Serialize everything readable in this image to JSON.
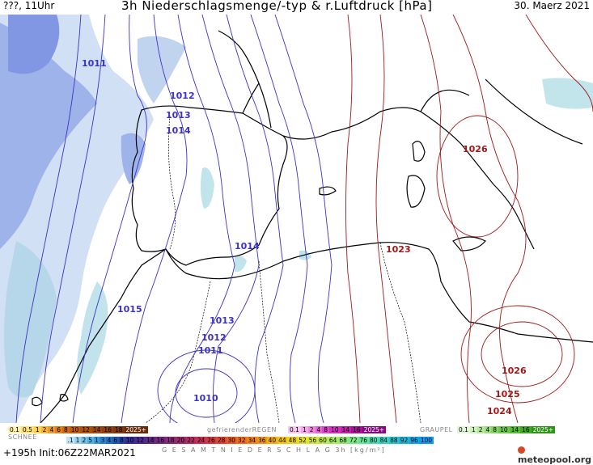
{
  "header": {
    "left": "???, 11Uhr",
    "title": "3h Niederschlagsmenge/-typ & r.Luftdruck [hPa]",
    "date": "30. Maerz 2021"
  },
  "map": {
    "isobar_labels_blue": [
      "1011",
      "1012",
      "1013",
      "1014",
      "1014",
      "1015",
      "1013",
      "1012",
      "1011",
      "1010"
    ],
    "isobar_labels_red": [
      "1026",
      "1023",
      "1026",
      "1025",
      "1024"
    ]
  },
  "legend": {
    "snow_label": "SCHNEE",
    "snow_values": [
      "0.1",
      "0.5",
      "1",
      "2",
      "4",
      "6",
      "8",
      "10",
      "12",
      "14",
      "16",
      "18",
      "2025+"
    ],
    "freezing_rain_label": "gefrierenderREGEN",
    "freezing_rain_values": [
      "0.1",
      "1",
      "2",
      "4",
      "8",
      "10",
      "14",
      "16",
      "2025+"
    ],
    "graupel_label": "GRAUPEL",
    "graupel_values": [
      "0.1",
      "1",
      "2",
      "4",
      "8",
      "10",
      "14",
      "16",
      "2025+"
    ],
    "total_values": [
      ".1",
      "1",
      "2",
      "5",
      "1",
      "3",
      "4",
      "6",
      "8",
      "10",
      "12",
      "14",
      "16",
      "18",
      "20",
      "22",
      "24",
      "26",
      "28",
      "30",
      "32",
      "34",
      "36",
      "40",
      "44",
      "48",
      "52",
      "56",
      "60",
      "64",
      "68",
      "72",
      "76",
      "80",
      "84",
      "88",
      "92",
      "96",
      "100"
    ],
    "total_label": "G E S A M T N I E D E R S C H L A G  3h  [kg/m²]"
  },
  "footer": {
    "run_info": "+195h  Init:06Z22MAR2021",
    "logo_text": "meteopool.org"
  },
  "colors": {
    "isobar_blue": "#3b32c8",
    "isobar_red": "#a01818",
    "land": "#ffffff",
    "precip_light": "#c7d8f2",
    "precip_mid": "#7f95e0"
  }
}
